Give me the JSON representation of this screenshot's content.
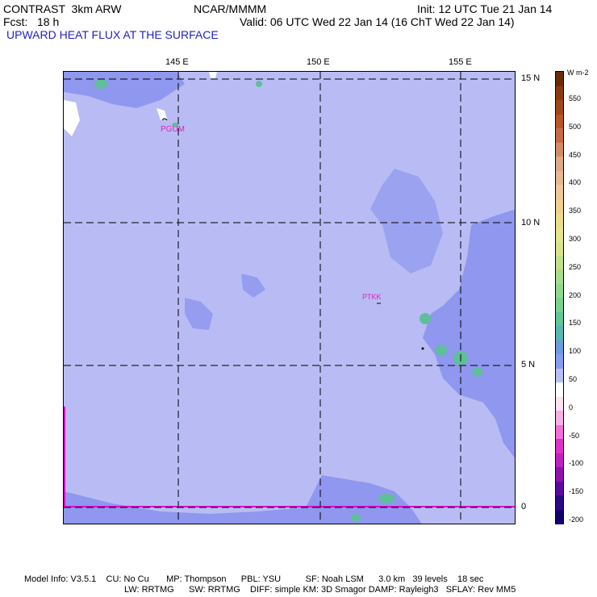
{
  "header": {
    "model": "CONTRAST  3km ARW",
    "org": "NCAR/MMMM",
    "init": "Init: 12 UTC Tue 21 Jan 14",
    "fcst": "Fcst:   18 h",
    "valid": "Valid: 06 UTC Wed 22 Jan 14 (16 ChT Wed 22 Jan 14)",
    "field": "UPWARD HEAT FLUX AT THE SURFACE"
  },
  "map": {
    "lon_labels": [
      "145 E",
      "150 E",
      "155 E"
    ],
    "lat_labels": [
      "15 N",
      "10 N",
      "5 N",
      "0"
    ],
    "stations": [
      {
        "id": "PGUM"
      },
      {
        "id": "PTKK"
      }
    ],
    "colors": {
      "ocean": "#b9bcf4",
      "flux_low": "#8f97ee",
      "flux_mid": "#5fbf9a",
      "land": "#ffffff",
      "station": "#e020c0",
      "boundary": "#e000d0"
    }
  },
  "colorbar": {
    "unit": "W m-2",
    "labels": [
      "550",
      "500",
      "450",
      "400",
      "350",
      "300",
      "250",
      "200",
      "150",
      "100",
      "50",
      "0",
      "-50",
      "-100",
      "-150",
      "-200"
    ],
    "colors": [
      "#6b2a08",
      "#8a3a12",
      "#a04818",
      "#b8562a",
      "#c86a44",
      "#d48a6a",
      "#e0a88c",
      "#e8b890",
      "#efc89a",
      "#f0d090",
      "#ecdc8a",
      "#e6e48a",
      "#d8e488",
      "#c0e08a",
      "#a8dc8c",
      "#90d88e",
      "#78d290",
      "#60c898",
      "#58b8b0",
      "#6a9ce0",
      "#8a9cf0",
      "#b6c0f8",
      "#ffffff",
      "#ffe0f4",
      "#f8b0e8",
      "#f070d8",
      "#e030c8",
      "#c020c0",
      "#9010b0",
      "#5a0aa0",
      "#2a0888",
      "#14006c"
    ]
  },
  "footer": {
    "line1": "Model Info: V3.5.1    CU: No Cu       MP: Thompson      PBL: YSU          SF: Noah LSM      3.0 km   39 levels    18 sec",
    "line2": "LW: RRTMG      SW: RRTMG    DIFF: simple KM: 3D Smagor DAMP: Rayleigh3   SFLAY: Rev MM5"
  }
}
